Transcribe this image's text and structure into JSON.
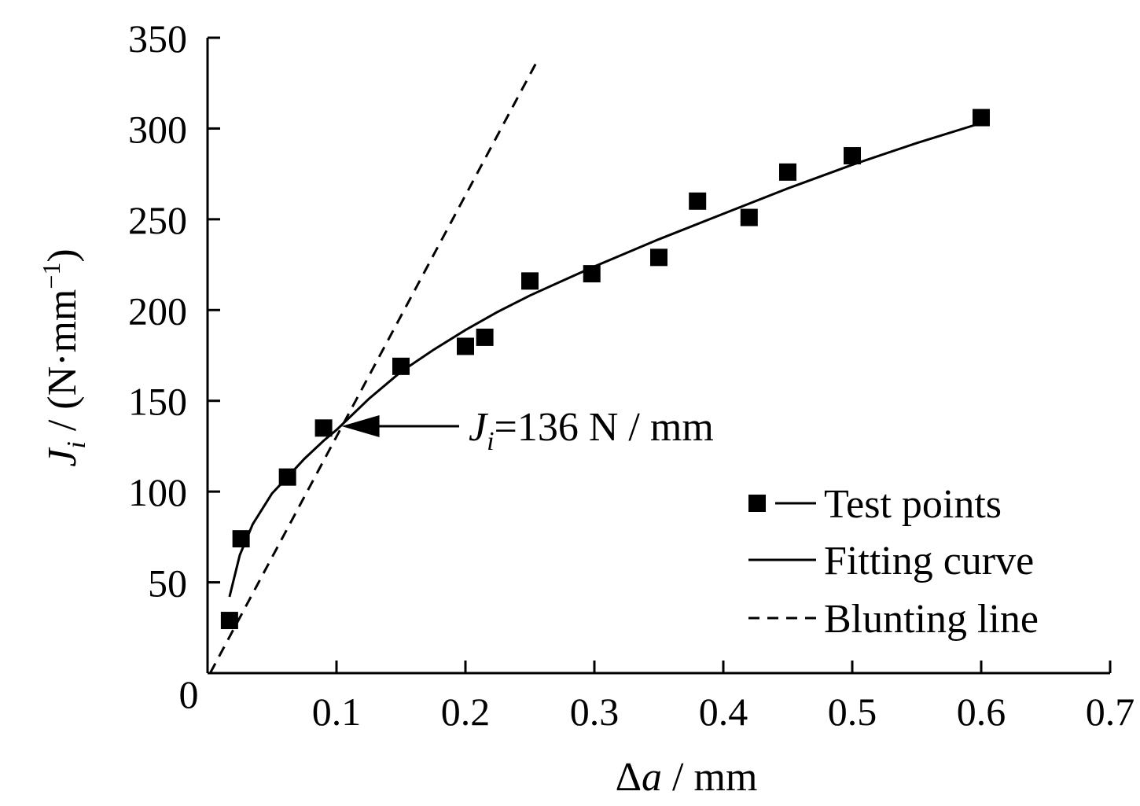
{
  "chart_data": {
    "type": "scatter",
    "xlabel": {
      "symbol": "Δ",
      "var": "a",
      "unit": " / mm"
    },
    "ylabel": {
      "var": "J",
      "sub": "i",
      "unit": " / (N·mm",
      "sup": "−1",
      "close": ")"
    },
    "xlim": [
      0,
      0.7
    ],
    "ylim": [
      0,
      350
    ],
    "x_ticks": [
      {
        "value": 0.1,
        "label": "0.1"
      },
      {
        "value": 0.2,
        "label": "0.2"
      },
      {
        "value": 0.3,
        "label": "0.3"
      },
      {
        "value": 0.4,
        "label": "0.4"
      },
      {
        "value": 0.5,
        "label": "0.5"
      },
      {
        "value": 0.6,
        "label": "0.6"
      },
      {
        "value": 0.7,
        "label": "0.7"
      }
    ],
    "y_ticks": [
      {
        "value": 50,
        "label": "50"
      },
      {
        "value": 100,
        "label": "100"
      },
      {
        "value": 150,
        "label": "150"
      },
      {
        "value": 200,
        "label": "200"
      },
      {
        "value": 250,
        "label": "250"
      },
      {
        "value": 300,
        "label": "300"
      },
      {
        "value": 350,
        "label": "350"
      }
    ],
    "origin_label": "0",
    "grid": false,
    "legend_position": "bottom-right",
    "series": [
      {
        "name": "Test points",
        "kind": "scatter",
        "marker": "square",
        "points": [
          [
            0.017,
            29
          ],
          [
            0.026,
            74
          ],
          [
            0.062,
            108
          ],
          [
            0.09,
            135
          ],
          [
            0.15,
            169
          ],
          [
            0.2,
            180
          ],
          [
            0.215,
            185
          ],
          [
            0.25,
            216
          ],
          [
            0.298,
            220
          ],
          [
            0.35,
            229
          ],
          [
            0.38,
            260
          ],
          [
            0.42,
            251
          ],
          [
            0.45,
            276
          ],
          [
            0.5,
            285
          ],
          [
            0.6,
            306
          ]
        ]
      },
      {
        "name": "Fitting curve",
        "kind": "line",
        "style": "solid",
        "points": [
          [
            0.017,
            42
          ],
          [
            0.025,
            65
          ],
          [
            0.035,
            82
          ],
          [
            0.05,
            99
          ],
          [
            0.062,
            108
          ],
          [
            0.075,
            118
          ],
          [
            0.09,
            128
          ],
          [
            0.1,
            134
          ],
          [
            0.125,
            151
          ],
          [
            0.15,
            166
          ],
          [
            0.175,
            178
          ],
          [
            0.2,
            189
          ],
          [
            0.225,
            199
          ],
          [
            0.25,
            208
          ],
          [
            0.275,
            216
          ],
          [
            0.3,
            224
          ],
          [
            0.35,
            239
          ],
          [
            0.4,
            253
          ],
          [
            0.45,
            267
          ],
          [
            0.5,
            280
          ],
          [
            0.55,
            292
          ],
          [
            0.6,
            303
          ]
        ]
      },
      {
        "name": "Blunting line",
        "kind": "line",
        "style": "dashed",
        "points": [
          [
            0.002,
            0
          ],
          [
            0.257,
            339
          ]
        ]
      }
    ],
    "annotations": [
      {
        "var": "J",
        "sub": "i",
        "rest": "=136 N / mm",
        "arrow_from": [
          0.2,
          136
        ],
        "arrow_to": [
          0.104,
          136
        ]
      }
    ]
  }
}
